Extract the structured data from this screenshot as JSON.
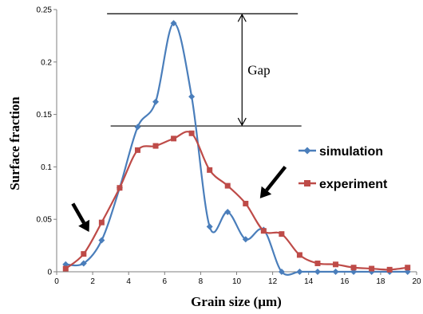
{
  "chart_data": {
    "type": "line",
    "title": "",
    "xlabel": "Grain size (µm)",
    "ylabel": "Surface fraction",
    "xlim": [
      0,
      20
    ],
    "ylim": [
      0,
      0.25
    ],
    "xticks": [
      0,
      2,
      4,
      6,
      8,
      10,
      12,
      14,
      16,
      18,
      20
    ],
    "yticks": [
      0,
      0.05,
      0.1,
      0.15,
      0.2,
      0.25
    ],
    "xtick_labels": [
      "0",
      "2",
      "4",
      "6",
      "8",
      "10",
      "12",
      "14",
      "16",
      "18",
      "20"
    ],
    "ytick_labels": [
      "0",
      "0.05",
      "0.1",
      "0.15",
      "0.2",
      "0.25"
    ],
    "grid": false,
    "legend_position": "right",
    "series": [
      {
        "name": "simulation",
        "color": "#4a7ebb",
        "marker": "diamond",
        "x": [
          0.5,
          1.5,
          2.5,
          3.5,
          4.5,
          5.5,
          6.5,
          7.5,
          8.5,
          9.5,
          10.5,
          11.5,
          12.5,
          13.5,
          14.5,
          15.5,
          16.5,
          17.5,
          18.5,
          19.5
        ],
        "y": [
          0.007,
          0.008,
          0.03,
          0.08,
          0.138,
          0.162,
          0.237,
          0.167,
          0.043,
          0.057,
          0.031,
          0.04,
          0.0,
          0.0,
          0.0,
          0.0,
          0.0,
          0.0,
          0.0,
          0.0
        ]
      },
      {
        "name": "experiment",
        "color": "#be4b48",
        "marker": "square",
        "x": [
          0.5,
          1.5,
          2.5,
          3.5,
          4.5,
          5.5,
          6.5,
          7.5,
          8.5,
          9.5,
          10.5,
          11.5,
          12.5,
          13.5,
          14.5,
          15.5,
          16.5,
          17.5,
          18.5,
          19.5
        ],
        "y": [
          0.003,
          0.017,
          0.047,
          0.08,
          0.116,
          0.12,
          0.127,
          0.132,
          0.097,
          0.082,
          0.065,
          0.039,
          0.036,
          0.016,
          0.008,
          0.007,
          0.004,
          0.003,
          0.002,
          0.004
        ]
      }
    ],
    "annotations": [
      {
        "text": "Gap",
        "type": "double-arrow",
        "from_y": 0.139,
        "to_y": 0.246,
        "x": 10.3
      }
    ],
    "reference_lines": [
      {
        "y": 0.246,
        "x_from": 2.8,
        "x_to": 13.4
      },
      {
        "y": 0.139,
        "x_from": 3.0,
        "x_to": 13.6
      }
    ],
    "pointer_arrows": [
      {
        "tip": [
          1.8,
          0.038
        ],
        "tail": [
          0.9,
          0.065
        ]
      },
      {
        "tip": [
          11.3,
          0.07
        ],
        "tail": [
          12.7,
          0.1
        ]
      }
    ]
  }
}
